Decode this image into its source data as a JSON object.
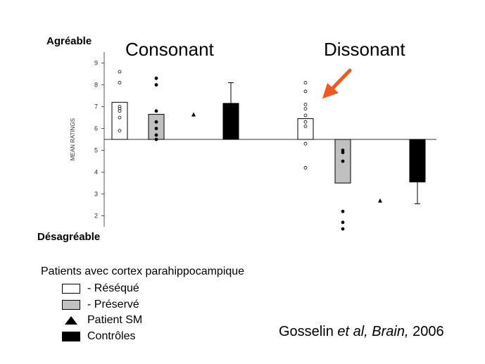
{
  "labels": {
    "top": "Agréable",
    "bottom": "Désagréable",
    "condition_left": "Consonant",
    "condition_right": "Dissonant"
  },
  "legend": {
    "title": "Patients avec cortex parahippocampique",
    "items": [
      {
        "label": "- Réséqué",
        "symbol": "open-rect"
      },
      {
        "label": "- Préservé",
        "symbol": "gray-rect"
      },
      {
        "label": "Patient SM",
        "symbol": "triangle"
      },
      {
        "label": "Contrôles",
        "symbol": "black-rect"
      }
    ]
  },
  "citation": {
    "authors": "Gosselin ",
    "etal": "et al,",
    "journal": " Brain,",
    "year": " 2006"
  },
  "colors": {
    "resected": "#ffffff",
    "preserved": "#c0c0c0",
    "controls": "#000000",
    "arrow": "#f05a22"
  },
  "chart_data": {
    "type": "bar",
    "ylabel": "MEAN RATINGS",
    "ylim": [
      1.5,
      9.5
    ],
    "yticks": [
      2,
      3,
      4,
      5,
      6,
      7,
      8,
      9
    ],
    "baseline": 5.5,
    "groups": [
      {
        "condition": "Consonant",
        "resected": {
          "mean": 7.2,
          "points": [
            8.6,
            8.1,
            7.0,
            6.9,
            6.8,
            6.5,
            5.9
          ]
        },
        "preserved": {
          "mean": 6.65,
          "points": [
            8.3,
            8.0,
            6.8,
            6.3,
            6.0,
            5.7,
            5.5
          ]
        },
        "sm": 6.65,
        "controls": {
          "mean": 7.15,
          "error_high": 8.1
        }
      },
      {
        "condition": "Dissonant",
        "resected": {
          "mean": 6.45,
          "points": [
            8.1,
            7.7,
            7.1,
            6.9,
            6.6,
            6.3,
            6.1,
            5.3,
            4.2
          ]
        },
        "preserved": {
          "mean": 3.5,
          "points": [
            5.0,
            4.9,
            4.5,
            2.2,
            1.7,
            1.4
          ]
        },
        "sm": 2.7,
        "controls": {
          "mean": 3.55,
          "error_low": 2.55
        }
      }
    ]
  }
}
